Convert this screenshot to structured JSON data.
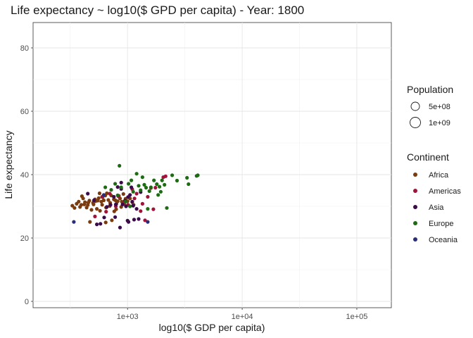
{
  "chart_data": {
    "type": "scatter",
    "title": "Life expectancy ~ log10($ GPD per capita) - Year: 1800",
    "xlabel": "log10($ GDP per capita)",
    "ylabel": "Life expectancy",
    "x_scale": "log10",
    "xlim": [
      150,
      200000
    ],
    "ylim": [
      -2,
      88
    ],
    "x_ticks": [
      1000,
      10000,
      100000
    ],
    "x_tick_labels": [
      "1e+03",
      "1e+04",
      "1e+05"
    ],
    "y_ticks": [
      0,
      20,
      40,
      60,
      80
    ],
    "y_tick_labels": [
      "0",
      "20",
      "40",
      "60",
      "80"
    ],
    "grid": true,
    "legend_position": "right",
    "size_legend": {
      "title": "Population",
      "entries": [
        {
          "label": "5e+08",
          "value": 500000000
        },
        {
          "label": "1e+09",
          "value": 1000000000
        }
      ]
    },
    "series": [
      {
        "name": "Africa",
        "color": "#7a3b0e",
        "points": [
          [
            330,
            30.2
          ],
          [
            345,
            29.5
          ],
          [
            360,
            30.8
          ],
          [
            375,
            31.5
          ],
          [
            385,
            29.8
          ],
          [
            395,
            30.5
          ],
          [
            400,
            33.2
          ],
          [
            410,
            32.5
          ],
          [
            420,
            30.6
          ],
          [
            425,
            31.3
          ],
          [
            440,
            29.6
          ],
          [
            450,
            30.4
          ],
          [
            455,
            31.2
          ],
          [
            465,
            31.8
          ],
          [
            470,
            25.1
          ],
          [
            485,
            28.9
          ],
          [
            500,
            31.1
          ],
          [
            505,
            30.6
          ],
          [
            520,
            32.2
          ],
          [
            525,
            31.6
          ],
          [
            540,
            29.2
          ],
          [
            550,
            31.8
          ],
          [
            560,
            32.6
          ],
          [
            570,
            34.1
          ],
          [
            575,
            28.6
          ],
          [
            590,
            31.5
          ],
          [
            600,
            30.5
          ],
          [
            605,
            32.9
          ],
          [
            620,
            31.9
          ],
          [
            640,
            33.4
          ],
          [
            650,
            29.6
          ],
          [
            660,
            34.1
          ],
          [
            680,
            32.0
          ],
          [
            700,
            30.1
          ],
          [
            705,
            31.1
          ],
          [
            720,
            33.4
          ],
          [
            760,
            32.2
          ],
          [
            785,
            31.9
          ],
          [
            800,
            30.8
          ],
          [
            820,
            31.6
          ],
          [
            840,
            33.3
          ],
          [
            860,
            32.5
          ],
          [
            880,
            29.8
          ],
          [
            890,
            31.5
          ],
          [
            920,
            33.9
          ],
          [
            935,
            30.7
          ],
          [
            960,
            32.4
          ],
          [
            1000,
            31.6
          ],
          [
            1050,
            32.5
          ],
          [
            1100,
            31.3
          ],
          [
            1130,
            30.5
          ],
          [
            645,
            24.9
          ],
          [
            730,
            25.6
          ],
          [
            765,
            28.4
          ],
          [
            795,
            29.1
          ]
        ]
      },
      {
        "name": "Americas",
        "color": "#a0133a",
        "points": [
          [
            520,
            26.8
          ],
          [
            600,
            33.0
          ],
          [
            650,
            28.3
          ],
          [
            700,
            34.0
          ],
          [
            790,
            30.0
          ],
          [
            830,
            33.2
          ],
          [
            920,
            31.0
          ],
          [
            1010,
            30.5
          ],
          [
            1100,
            35.4
          ],
          [
            1150,
            32.5
          ],
          [
            1200,
            34.0
          ],
          [
            1300,
            28.5
          ],
          [
            1350,
            30.8
          ],
          [
            1500,
            33.0
          ],
          [
            1600,
            35.8
          ],
          [
            1750,
            35.9
          ],
          [
            2050,
            39.2
          ],
          [
            2150,
            39.5
          ],
          [
            1680,
            29.1
          ],
          [
            1420,
            25.6
          ]
        ]
      },
      {
        "name": "Asia",
        "color": "#3a0a4a",
        "points": [
          [
            450,
            34.0
          ],
          [
            510,
            31.9
          ],
          [
            540,
            24.3
          ],
          [
            580,
            24.5
          ],
          [
            625,
            26.5
          ],
          [
            660,
            29.8
          ],
          [
            710,
            30.5
          ],
          [
            760,
            33.0
          ],
          [
            790,
            30.6
          ],
          [
            820,
            36.1
          ],
          [
            880,
            35.5
          ],
          [
            905,
            30.6
          ],
          [
            950,
            31.8
          ],
          [
            970,
            30.0
          ],
          [
            1000,
            25.5
          ],
          [
            1010,
            32.9
          ],
          [
            1020,
            25.1
          ],
          [
            1050,
            33.6
          ],
          [
            1080,
            36.0
          ],
          [
            1100,
            31.5
          ],
          [
            1120,
            30.2
          ],
          [
            1140,
            25.8
          ],
          [
            1200,
            29.2
          ],
          [
            1250,
            26.0
          ],
          [
            1300,
            34.5
          ],
          [
            880,
            37.5
          ],
          [
            860,
            23.3
          ],
          [
            780,
            26.6
          ]
        ]
      },
      {
        "name": "Europe",
        "color": "#1d6b12",
        "points": [
          [
            640,
            36.0
          ],
          [
            720,
            35.2
          ],
          [
            780,
            37.1
          ],
          [
            820,
            33.5
          ],
          [
            850,
            42.8
          ],
          [
            880,
            36.0
          ],
          [
            960,
            31.5
          ],
          [
            1020,
            37.1
          ],
          [
            1050,
            30.0
          ],
          [
            1080,
            38.2
          ],
          [
            1120,
            34.6
          ],
          [
            1200,
            40.3
          ],
          [
            1250,
            36.5
          ],
          [
            1300,
            35.1
          ],
          [
            1350,
            39.2
          ],
          [
            1400,
            36.8
          ],
          [
            1450,
            35.9
          ],
          [
            1500,
            29.2
          ],
          [
            1550,
            34.8
          ],
          [
            1600,
            36.0
          ],
          [
            1700,
            38.2
          ],
          [
            1800,
            37.0
          ],
          [
            1900,
            36.2
          ],
          [
            2000,
            38.2
          ],
          [
            2100,
            36.8
          ],
          [
            2200,
            29.5
          ],
          [
            2450,
            39.8
          ],
          [
            2700,
            38.1
          ],
          [
            3300,
            39.0
          ],
          [
            3400,
            37.0
          ],
          [
            4000,
            39.6
          ],
          [
            4100,
            39.8
          ],
          [
            1850,
            33.6
          ],
          [
            1950,
            34.6
          ]
        ]
      },
      {
        "name": "Oceania",
        "color": "#2a2e7a",
        "points": [
          [
            340,
            25.1
          ],
          [
            620,
            33.6
          ],
          [
            1500,
            25.1
          ]
        ]
      }
    ]
  }
}
